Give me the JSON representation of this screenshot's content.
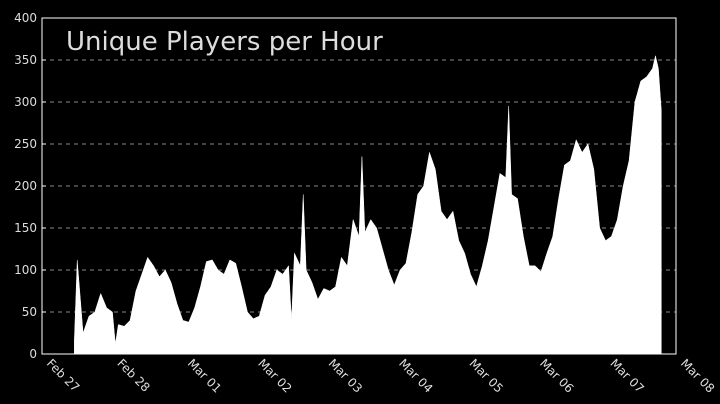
{
  "chart_data": {
    "type": "area",
    "title": "Unique Players per Hour",
    "color": "#ffffff",
    "grid": true,
    "x": [
      "Feb 27 11:00",
      "Feb 27 12:00",
      "Feb 27 14:00",
      "Feb 27 16:00",
      "Feb 27 18:00",
      "Feb 27 20:00",
      "Feb 27 22:00",
      "Feb 28 00:00",
      "Feb 28 01:00",
      "Feb 28 02:00",
      "Feb 28 04:00",
      "Feb 28 06:00",
      "Feb 28 08:00",
      "Feb 28 10:00",
      "Feb 28 12:00",
      "Feb 28 14:00",
      "Feb 28 16:00",
      "Feb 28 18:00",
      "Feb 28 20:00",
      "Feb 28 22:00",
      "Mar 01 00:00",
      "Mar 01 02:00",
      "Mar 01 04:00",
      "Mar 01 06:00",
      "Mar 01 08:00",
      "Mar 01 10:00",
      "Mar 01 12:00",
      "Mar 01 14:00",
      "Mar 01 16:00",
      "Mar 01 18:00",
      "Mar 01 20:00",
      "Mar 01 22:00",
      "Mar 02 00:00",
      "Mar 02 02:00",
      "Mar 02 04:00",
      "Mar 02 06:00",
      "Mar 02 08:00",
      "Mar 02 10:00",
      "Mar 02 12:00",
      "Mar 02 13:00",
      "Mar 02 14:00",
      "Mar 02 16:00",
      "Mar 02 17:00",
      "Mar 02 18:00",
      "Mar 02 20:00",
      "Mar 02 22:00",
      "Mar 03 00:00",
      "Mar 03 02:00",
      "Mar 03 04:00",
      "Mar 03 06:00",
      "Mar 03 08:00",
      "Mar 03 10:00",
      "Mar 03 12:00",
      "Mar 03 13:00",
      "Mar 03 14:00",
      "Mar 03 16:00",
      "Mar 03 18:00",
      "Mar 03 20:00",
      "Mar 03 22:00",
      "Mar 04 00:00",
      "Mar 04 02:00",
      "Mar 04 04:00",
      "Mar 04 06:00",
      "Mar 04 08:00",
      "Mar 04 10:00",
      "Mar 04 12:00",
      "Mar 04 14:00",
      "Mar 04 16:00",
      "Mar 04 18:00",
      "Mar 04 20:00",
      "Mar 04 22:00",
      "Mar 05 00:00",
      "Mar 05 02:00",
      "Mar 05 04:00",
      "Mar 05 06:00",
      "Mar 05 08:00",
      "Mar 05 10:00",
      "Mar 05 12:00",
      "Mar 05 14:00",
      "Mar 05 15:00",
      "Mar 05 16:00",
      "Mar 05 18:00",
      "Mar 05 20:00",
      "Mar 05 22:00",
      "Mar 06 00:00",
      "Mar 06 02:00",
      "Mar 06 04:00",
      "Mar 06 06:00",
      "Mar 06 08:00",
      "Mar 06 10:00",
      "Mar 06 12:00",
      "Mar 06 14:00",
      "Mar 06 16:00",
      "Mar 06 18:00",
      "Mar 06 20:00",
      "Mar 06 22:00",
      "Mar 07 00:00",
      "Mar 07 02:00",
      "Mar 07 04:00",
      "Mar 07 06:00",
      "Mar 07 08:00",
      "Mar 07 10:00",
      "Mar 07 12:00",
      "Mar 07 14:00",
      "Mar 07 16:00",
      "Mar 07 17:00",
      "Mar 07 18:00",
      "Mar 07 19:00"
    ],
    "values": [
      15,
      112,
      25,
      45,
      50,
      72,
      55,
      50,
      12,
      35,
      33,
      40,
      75,
      95,
      115,
      105,
      92,
      100,
      85,
      60,
      40,
      38,
      55,
      80,
      110,
      112,
      100,
      95,
      112,
      108,
      80,
      50,
      42,
      45,
      70,
      80,
      100,
      95,
      105,
      40,
      120,
      105,
      190,
      100,
      85,
      65,
      78,
      75,
      80,
      115,
      105,
      160,
      140,
      235,
      145,
      160,
      150,
      125,
      100,
      82,
      100,
      108,
      145,
      190,
      200,
      240,
      220,
      170,
      160,
      170,
      135,
      120,
      95,
      80,
      105,
      135,
      175,
      215,
      210,
      295,
      190,
      185,
      140,
      105,
      105,
      98,
      120,
      140,
      185,
      225,
      230,
      255,
      240,
      250,
      220,
      150,
      135,
      140,
      160,
      200,
      230,
      300,
      325,
      330,
      340,
      355,
      340,
      290
    ],
    "xlim": [
      "Feb 27 00:00",
      "Mar 08 00:00"
    ],
    "xticks": [
      {
        "value": "Feb 27 00:00",
        "label": "Feb 27"
      },
      {
        "value": "Feb 28 00:00",
        "label": "Feb 28"
      },
      {
        "value": "Mar 01 00:00",
        "label": "Mar 01"
      },
      {
        "value": "Mar 02 00:00",
        "label": "Mar 02"
      },
      {
        "value": "Mar 03 00:00",
        "label": "Mar 03"
      },
      {
        "value": "Mar 04 00:00",
        "label": "Mar 04"
      },
      {
        "value": "Mar 05 00:00",
        "label": "Mar 05"
      },
      {
        "value": "Mar 06 00:00",
        "label": "Mar 06"
      },
      {
        "value": "Mar 07 00:00",
        "label": "Mar 07"
      },
      {
        "value": "Mar 08 00:00",
        "label": "Mar 08"
      }
    ],
    "ylim": [
      0,
      400
    ],
    "yticks": [
      0,
      50,
      100,
      150,
      200,
      250,
      300,
      350,
      400
    ]
  }
}
